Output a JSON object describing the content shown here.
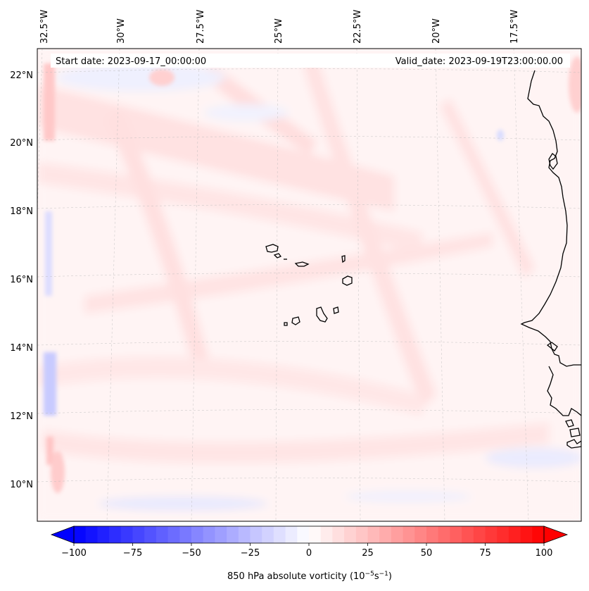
{
  "map": {
    "lon_labels": [
      "32.5°W",
      "30°W",
      "27.5°W",
      "25°W",
      "22.5°W",
      "20°W",
      "17.5°W"
    ],
    "lat_labels": [
      "22°N",
      "20°N",
      "18°N",
      "16°N",
      "14°N",
      "12°N",
      "10°N"
    ],
    "start_date_text": "Start date: 2023-09-17_00:00:00",
    "valid_date_text": "Valid_date: 2023-09-19T23:00:00.00",
    "gridlines": true,
    "coastline_color": "#000000"
  },
  "colorbar": {
    "ticks": [
      "−100",
      "−75",
      "−50",
      "−25",
      "0",
      "25",
      "50",
      "75",
      "100"
    ],
    "label_prefix": "850 hPa absolute vorticity (10",
    "label_exp1": "−5",
    "label_mid": "s",
    "label_exp2": "−1",
    "label_suffix": ")",
    "vmin": -100,
    "vmax": 100,
    "extend": "both",
    "colormap": "bwr",
    "colors": {
      "negative": "#0000ff",
      "zero": "#ffffff",
      "positive": "#ff0000"
    }
  }
}
